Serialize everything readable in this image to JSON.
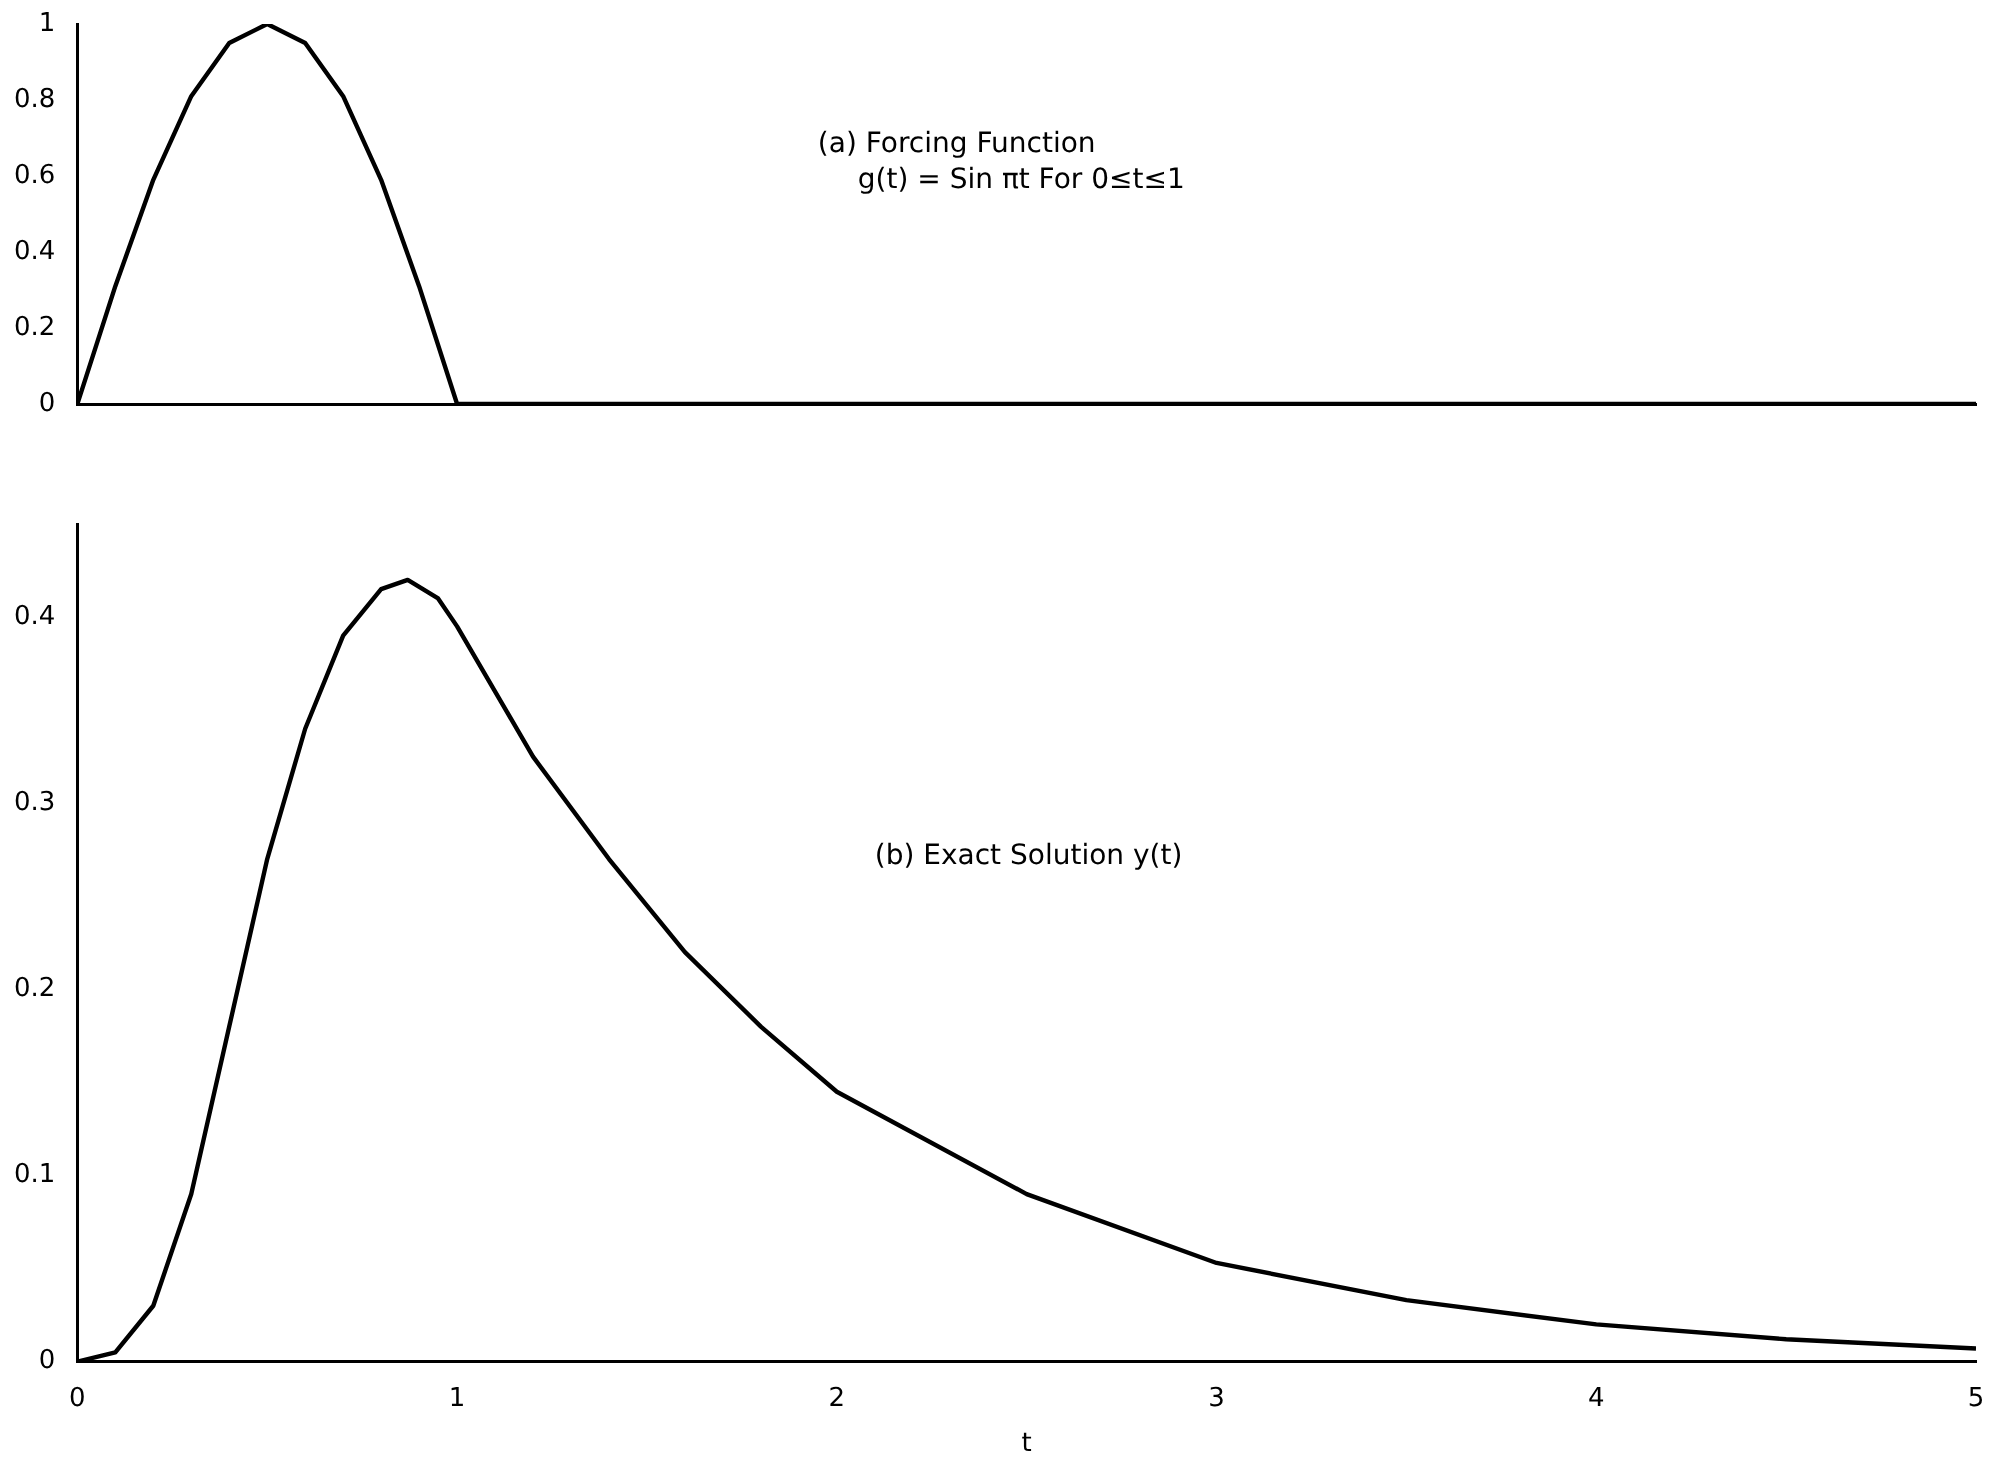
{
  "chart_data": [
    {
      "type": "line",
      "x": [
        0,
        0.1,
        0.2,
        0.3,
        0.4,
        0.5,
        0.6,
        0.7,
        0.8,
        0.9,
        1,
        5
      ],
      "values": [
        0,
        0.31,
        0.59,
        0.81,
        0.95,
        1,
        0.95,
        0.81,
        0.59,
        0.31,
        0,
        0
      ],
      "color": "#000000",
      "xlim": [
        0,
        5
      ],
      "ylim": [
        0,
        1
      ],
      "yticks": [
        0,
        0.2,
        0.4,
        0.6,
        0.8,
        1
      ],
      "tick_labels": "y",
      "grid": false,
      "legend": false,
      "marker": "none",
      "annotations": [
        "(a) Forcing Function",
        "g(t) = Sin πt For 0≤t≤1"
      ]
    },
    {
      "type": "line",
      "x": [
        0,
        0.1,
        0.2,
        0.3,
        0.4,
        0.5,
        0.6,
        0.7,
        0.8,
        0.87,
        0.95,
        1,
        1.2,
        1.4,
        1.6,
        1.8,
        2,
        2.5,
        3,
        3.5,
        4,
        4.5,
        5
      ],
      "values": [
        0,
        0.005,
        0.03,
        0.09,
        0.18,
        0.27,
        0.34,
        0.39,
        0.415,
        0.42,
        0.41,
        0.395,
        0.325,
        0.27,
        0.22,
        0.18,
        0.145,
        0.09,
        0.053,
        0.033,
        0.02,
        0.012,
        0.007
      ],
      "color": "#000000",
      "xlabel": "t",
      "xlim": [
        0,
        5
      ],
      "xticks": [
        0,
        1,
        2,
        3,
        4,
        5
      ],
      "ylim": [
        0,
        0.45
      ],
      "yticks": [
        0,
        0.1,
        0.2,
        0.3,
        0.4
      ],
      "grid": false,
      "legend": false,
      "marker": "none",
      "annotations": [
        "(b) Exact Solution y(t)"
      ]
    }
  ]
}
